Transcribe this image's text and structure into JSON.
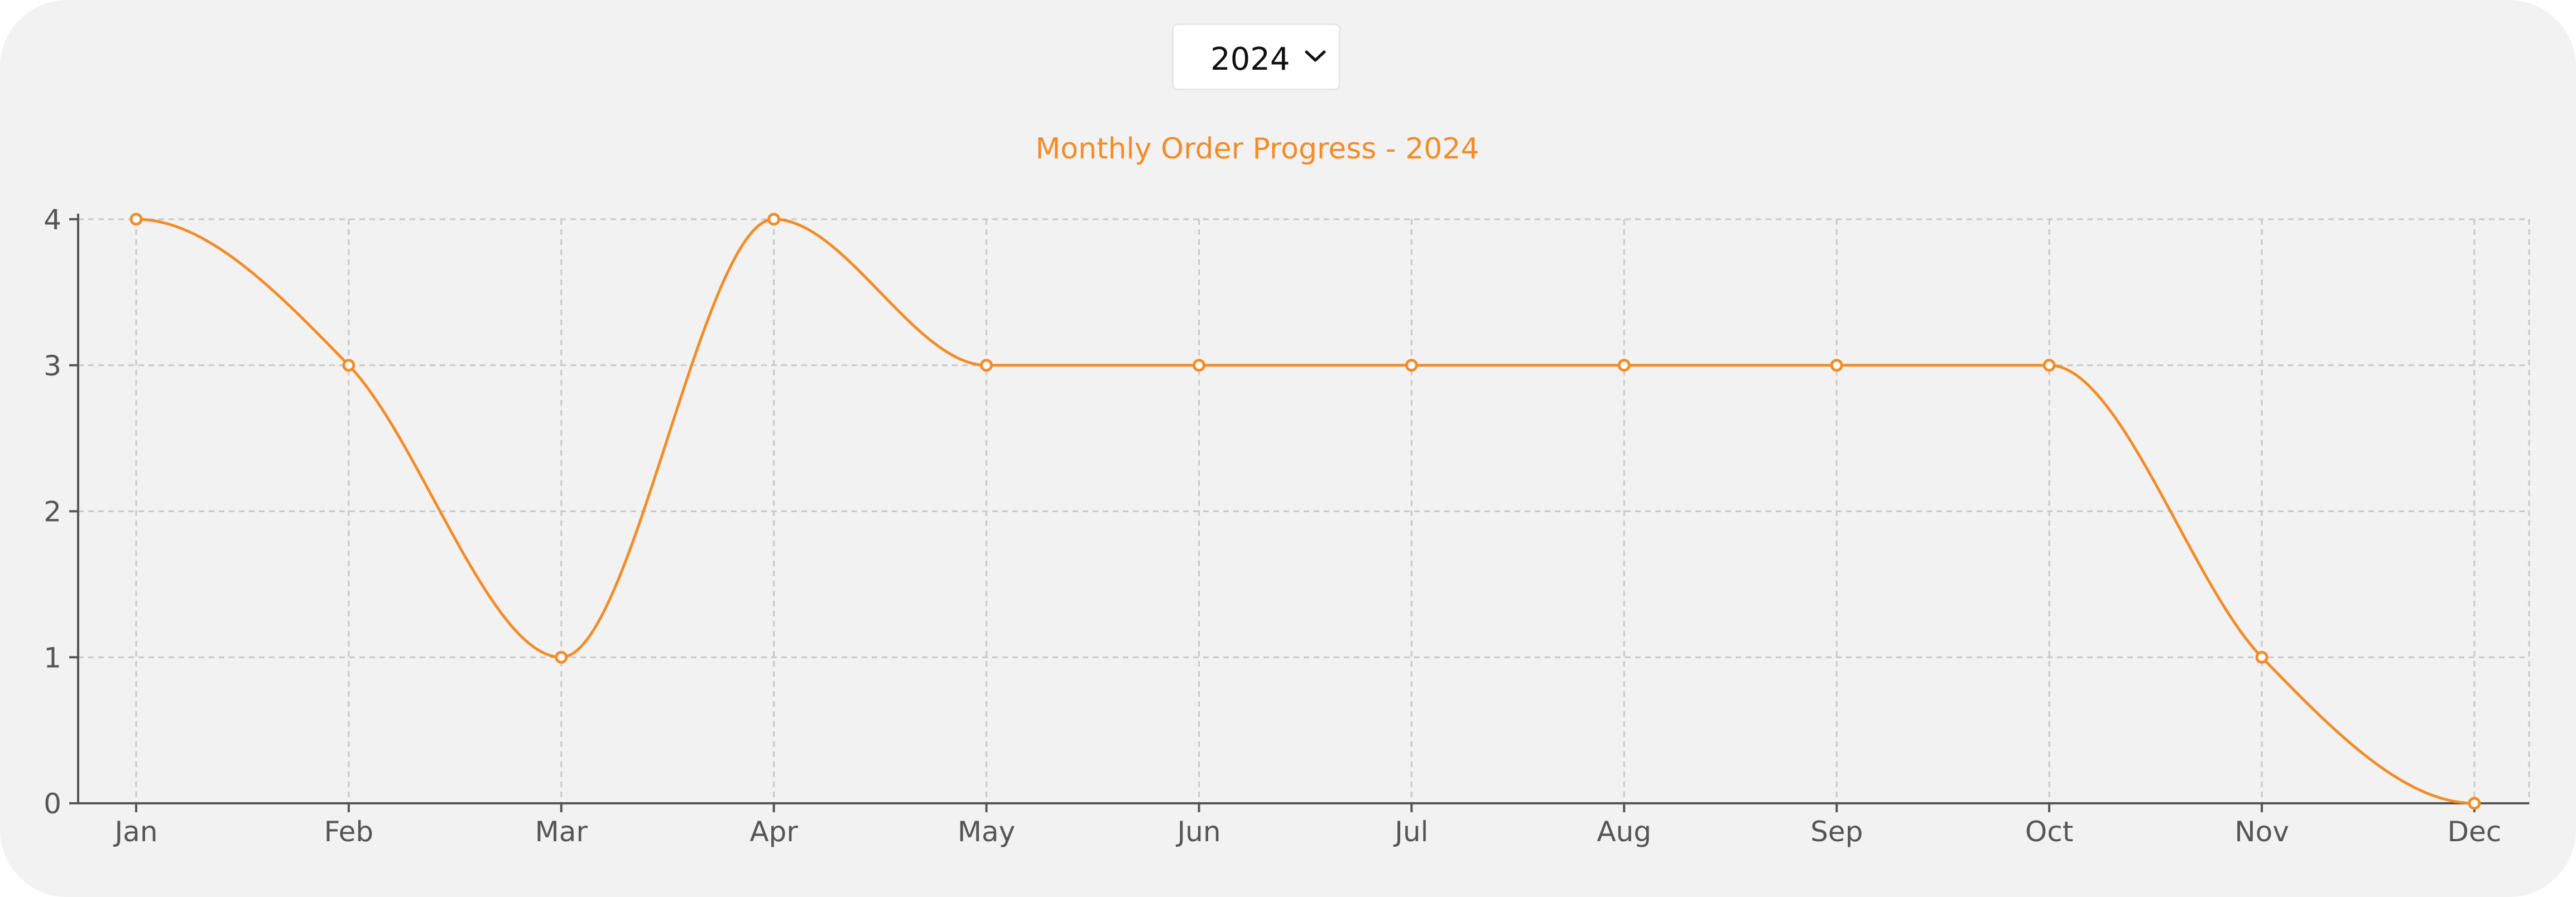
{
  "year_selector": {
    "selected": "2024"
  },
  "colors": {
    "accent": "#f28c28",
    "axis": "#555555",
    "grid": "#c8c8c8",
    "background": "#f2f2f2"
  },
  "chart_data": {
    "type": "line",
    "title": "Monthly Order Progress - 2024",
    "xlabel": "",
    "ylabel": "",
    "categories": [
      "Jan",
      "Feb",
      "Mar",
      "Apr",
      "May",
      "Jun",
      "Jul",
      "Aug",
      "Sep",
      "Oct",
      "Nov",
      "Dec"
    ],
    "series": [
      {
        "values": [
          4,
          3,
          1,
          4,
          3,
          3,
          3,
          3,
          3,
          3,
          1,
          0
        ]
      }
    ],
    "ylim": [
      0,
      4
    ],
    "yticks": [
      "0",
      "1",
      "2",
      "3",
      "4"
    ],
    "grid": true,
    "grid_style": "dashed",
    "smooth": true,
    "legend": "none"
  }
}
